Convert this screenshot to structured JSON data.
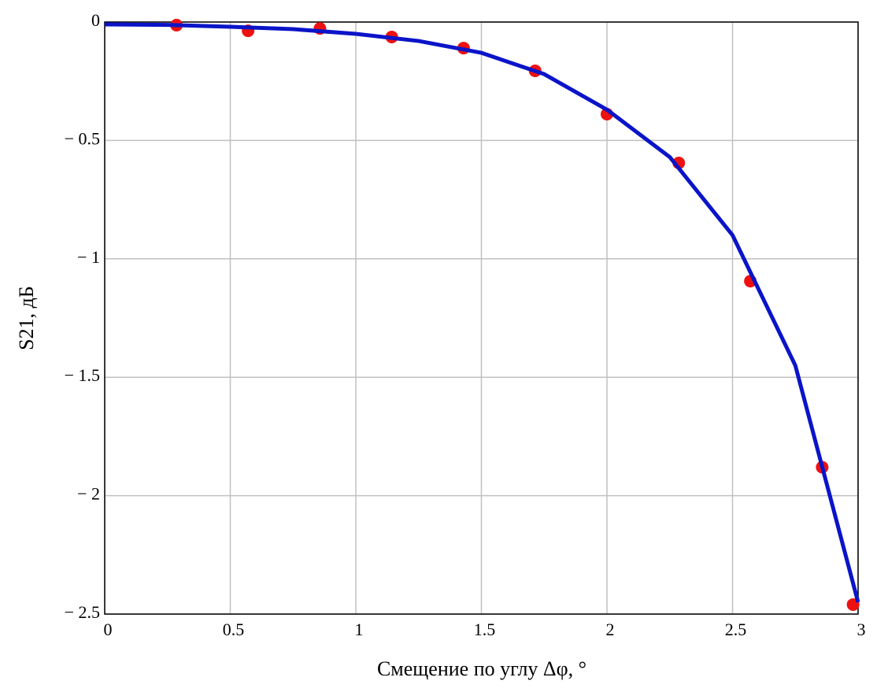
{
  "chart_data": {
    "type": "line",
    "x_label": "Смещение по углу Δφ, °",
    "y_label": "S21, дБ",
    "xlim": [
      0,
      3
    ],
    "ylim": [
      -2.5,
      0
    ],
    "xticks": [
      0,
      0.5,
      1,
      1.5,
      2,
      2.5,
      3
    ],
    "yticks": [
      0,
      {
        "value": -0.5,
        "label": "− 0.5"
      },
      {
        "value": -1,
        "label": "− 1"
      },
      {
        "value": -1.5,
        "label": "− 1.5"
      },
      {
        "value": -2,
        "label": "− 2"
      },
      {
        "value": -2.5,
        "label": "− 2.5"
      }
    ],
    "grid": true,
    "series": [
      {
        "type": "line",
        "color": "#0a14c8",
        "x": [
          0,
          0.25,
          0.5,
          0.75,
          1,
          1.25,
          1.5,
          1.75,
          2,
          2.25,
          2.5,
          2.75,
          3
        ],
        "values": [
          -0.01,
          -0.012,
          -0.02,
          -0.03,
          -0.05,
          -0.08,
          -0.13,
          -0.22,
          -0.37,
          -0.57,
          -0.9,
          -1.45,
          -2.45
        ]
      },
      {
        "type": "scatter",
        "color": "#ee1111",
        "x": [
          0.286,
          0.571,
          0.857,
          1.143,
          1.429,
          1.714,
          2.0,
          2.286,
          2.571,
          2.857,
          2.98
        ],
        "values": [
          -0.013,
          -0.037,
          -0.027,
          -0.063,
          -0.11,
          -0.206,
          -0.389,
          -0.595,
          -1.094,
          -1.88,
          -2.46
        ]
      }
    ]
  }
}
